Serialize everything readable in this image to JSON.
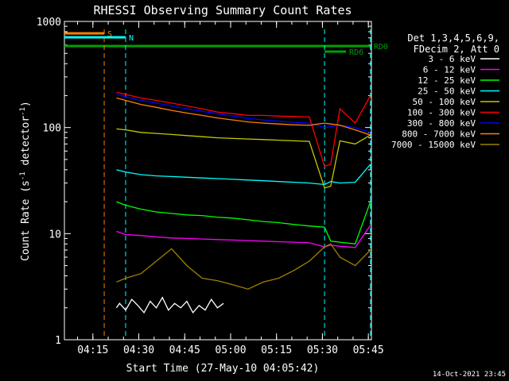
{
  "chart_data": {
    "type": "line",
    "title": "RHESSI Observing Summary Count Rates",
    "xlabel": "Start Time (27-May-10 04:05:42)",
    "ylabel": "Count Rate (s",
    "ylabel_sup1": "-1",
    "ylabel_mid": " detector",
    "ylabel_sup2": "-1",
    "ylabel_end": ")",
    "y_scale": "log",
    "ylim": [
      1,
      1000
    ],
    "xlim_minutes": [
      0,
      100.3
    ],
    "x_tick_labels": [
      "04:15",
      "04:30",
      "04:45",
      "05:00",
      "05:15",
      "05:30",
      "05:45"
    ],
    "x_tick_minutes": [
      9.3,
      24.3,
      39.3,
      54.3,
      69.3,
      84.3,
      99.3
    ],
    "y_tick_labels": [
      "1",
      "10",
      "100",
      "1000"
    ],
    "y_tick_values": [
      1,
      10,
      100,
      1000
    ],
    "legend_header": [
      "Det 1,3,4,5,6,9,",
      "FDecim 2, Att 0"
    ],
    "legend_position": "right",
    "timestamp": "14-Oct-2021 23:45",
    "flags": [
      {
        "label": "S",
        "color": "#ff8000",
        "start": 0,
        "end": 13
      },
      {
        "label": "N",
        "color": "#00ffff",
        "start": 0,
        "end": 20
      },
      {
        "label": "RD0",
        "color": "#00a000",
        "start": 0,
        "end": 100
      },
      {
        "label": "RD6",
        "color": "#00a000",
        "start": 85,
        "end": 92
      }
    ],
    "series": [
      {
        "name": "3 - 6 keV",
        "color": "#000000",
        "x": [
          17,
          18,
          20,
          22,
          24,
          26,
          28,
          30,
          32,
          34,
          36,
          38,
          40,
          42,
          44,
          46,
          48,
          50,
          52
        ],
        "y": [
          2,
          2.2,
          1.9,
          2.4,
          2.1,
          1.8,
          2.3,
          2,
          2.5,
          1.9,
          2.2,
          2,
          2.3,
          1.8,
          2.1,
          1.9,
          2.4,
          2,
          2.2
        ]
      },
      {
        "name": "6 - 12 keV",
        "color": "#ff00ff",
        "x": [
          17,
          20,
          25,
          30,
          35,
          40,
          45,
          50,
          55,
          60,
          65,
          70,
          75,
          80,
          85,
          87,
          90,
          95,
          100
        ],
        "y": [
          10.5,
          9.8,
          9.6,
          9.3,
          9.1,
          9,
          8.9,
          8.8,
          8.7,
          8.6,
          8.5,
          8.4,
          8.3,
          8.2,
          7.5,
          7.8,
          7.6,
          7.4,
          12
        ]
      },
      {
        "name": "12 - 25 keV",
        "color": "#00ff00",
        "x": [
          17,
          20,
          25,
          30,
          35,
          40,
          45,
          50,
          55,
          60,
          65,
          70,
          75,
          80,
          85,
          87,
          90,
          95,
          100
        ],
        "y": [
          20,
          18.5,
          17,
          16,
          15.5,
          15,
          14.8,
          14.3,
          14,
          13.5,
          13,
          12.7,
          12.2,
          11.8,
          11.5,
          8.5,
          8.3,
          8,
          20
        ]
      },
      {
        "name": "25 - 50 keV",
        "color": "#00ffff",
        "x": [
          17,
          20,
          25,
          30,
          35,
          40,
          45,
          50,
          55,
          60,
          65,
          70,
          75,
          80,
          85,
          87,
          90,
          95,
          100
        ],
        "y": [
          40,
          38,
          36,
          35,
          34.5,
          34,
          33.5,
          33,
          32.5,
          32,
          31.5,
          31,
          30.5,
          30,
          29,
          31,
          30,
          30.5,
          45
        ]
      },
      {
        "name": "50 - 100 keV",
        "color": "#c8c800",
        "x": [
          17,
          20,
          25,
          30,
          35,
          40,
          45,
          50,
          55,
          60,
          65,
          70,
          75,
          80,
          85,
          87,
          90,
          95,
          100
        ],
        "y": [
          97,
          95,
          90,
          88,
          86,
          84,
          82,
          80,
          79,
          78,
          77,
          76,
          75,
          74,
          27,
          28,
          75,
          70,
          85
        ]
      },
      {
        "name": "100 - 300 keV",
        "color": "#ff0000",
        "x": [
          17,
          20,
          25,
          30,
          35,
          40,
          45,
          50,
          55,
          60,
          65,
          70,
          75,
          80,
          85,
          87,
          90,
          95,
          100
        ],
        "y": [
          215,
          205,
          190,
          180,
          170,
          160,
          150,
          140,
          135,
          130,
          130,
          128,
          127,
          126,
          43,
          45,
          150,
          110,
          200
        ]
      },
      {
        "name": "300 - 800 keV",
        "color": "#0000ff",
        "x": [
          17,
          20,
          25,
          30,
          35,
          40,
          45,
          50,
          55,
          60,
          65,
          70,
          75,
          80,
          85,
          87,
          90,
          95,
          100
        ],
        "y": [
          205,
          195,
          180,
          170,
          160,
          150,
          142,
          135,
          128,
          122,
          118,
          115,
          112,
          110,
          100,
          102,
          105,
          100,
          90
        ]
      },
      {
        "name": "800 - 7000 keV",
        "color": "#ff8000",
        "x": [
          17,
          20,
          25,
          30,
          35,
          40,
          45,
          50,
          55,
          60,
          65,
          70,
          75,
          80,
          85,
          87,
          90,
          95,
          100
        ],
        "y": [
          190,
          180,
          165,
          155,
          145,
          137,
          130,
          123,
          118,
          113,
          110,
          108,
          106,
          105,
          110,
          108,
          105,
          95,
          85
        ]
      },
      {
        "name": "7000 - 15000 keV",
        "color": "#a08000",
        "x": [
          17,
          20,
          25,
          30,
          35,
          40,
          45,
          50,
          55,
          60,
          65,
          70,
          75,
          80,
          85,
          87,
          90,
          95,
          100
        ],
        "y": [
          3.5,
          3.8,
          4.2,
          5.5,
          7.2,
          5,
          3.8,
          3.6,
          3.3,
          3,
          3.5,
          3.8,
          4.5,
          5.5,
          7.5,
          8,
          6,
          5,
          7
        ]
      }
    ]
  }
}
